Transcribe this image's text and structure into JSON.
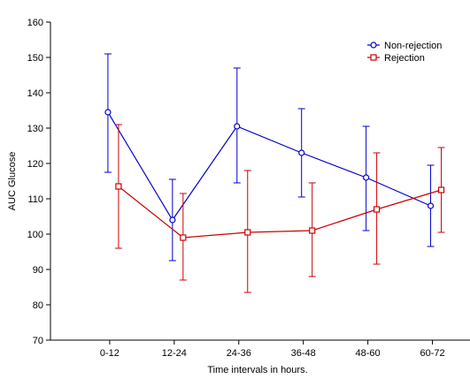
{
  "chart_data": {
    "type": "line",
    "xlabel": "Time intervals in hours.",
    "ylabel": "AUC Glucose",
    "categories": [
      "0-12",
      "12-24",
      "24-36",
      "36-48",
      "48-60",
      "60-72"
    ],
    "ylim": [
      70,
      160
    ],
    "yticks": [
      70,
      80,
      90,
      100,
      110,
      120,
      130,
      140,
      150,
      160
    ],
    "legend_position": "top-right",
    "grid": false,
    "series": [
      {
        "name": "Non-rejection",
        "color": "#0000cc",
        "marker": "circle",
        "values": [
          134.5,
          104.0,
          130.5,
          123.0,
          116.0,
          108.0
        ],
        "lower": [
          117.5,
          92.5,
          114.5,
          110.5,
          101.0,
          96.5
        ],
        "upper": [
          151.0,
          115.5,
          147.0,
          135.5,
          130.5,
          119.5
        ]
      },
      {
        "name": "Rejection",
        "color": "#cc0000",
        "marker": "square",
        "values": [
          113.5,
          99.0,
          100.5,
          101.0,
          107.0,
          112.5
        ],
        "lower": [
          96.0,
          87.0,
          83.5,
          88.0,
          91.5,
          100.5
        ],
        "upper": [
          131.0,
          111.5,
          118.0,
          114.5,
          123.0,
          124.5
        ]
      }
    ]
  }
}
